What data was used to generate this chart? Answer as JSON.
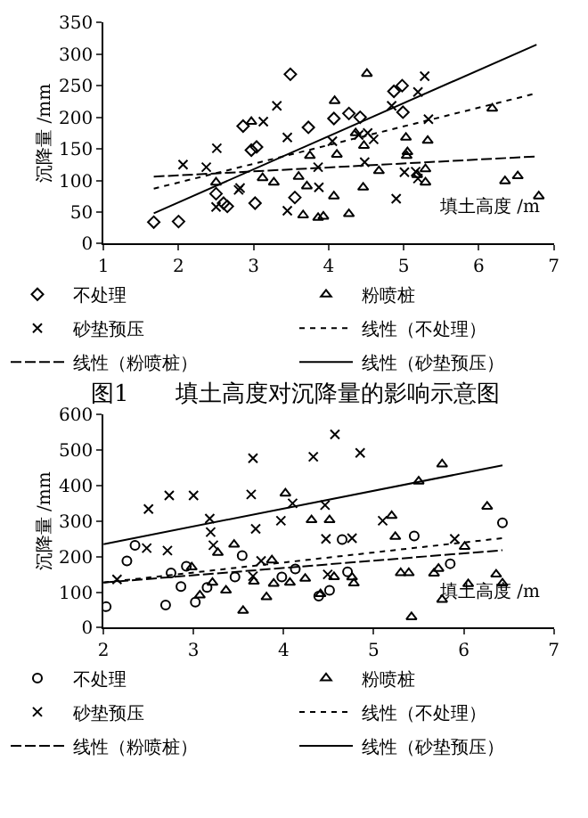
{
  "chart_data": [
    {
      "type": "scatter",
      "xlabel": "填土高度 /m",
      "ylabel": "沉降量 /mm",
      "xlim": [
        1,
        7
      ],
      "ylim": [
        0,
        350
      ],
      "xticks": [
        1,
        2,
        3,
        4,
        5,
        6,
        7
      ],
      "yticks": [
        0,
        50,
        100,
        150,
        200,
        250,
        300,
        350
      ],
      "legend": "bottom",
      "annotations": [
        "图1　　填土高度对沉降量的影响示意图"
      ],
      "series": [
        {
          "name": "不处理",
          "marker": "diamond",
          "color": "#000000",
          "x": [
            1.67,
            2.0,
            2.5,
            2.6,
            2.65,
            2.86,
            2.97,
            3.04,
            3.02,
            3.49,
            3.55,
            3.73,
            4.07,
            4.27,
            4.42,
            4.87,
            4.98,
            4.99
          ],
          "values": [
            34,
            35,
            79,
            64,
            59,
            186,
            148,
            153,
            64,
            268,
            73,
            184,
            198,
            206,
            200,
            241,
            250,
            208
          ]
        },
        {
          "name": "粉喷桩",
          "marker": "triangle",
          "color": "#000000",
          "x": [
            2.5,
            2.97,
            3.12,
            3.27,
            3.6,
            3.66,
            3.71,
            3.75,
            3.86,
            3.93,
            4.07,
            4.08,
            4.11,
            4.27,
            4.36,
            4.46,
            4.47,
            4.51,
            4.67,
            5.03,
            5.05,
            5.04,
            5.18,
            5.29,
            5.29,
            5.32,
            6.18,
            6.35,
            6.52,
            6.8
          ],
          "values": [
            97,
            193,
            104,
            97,
            106,
            45,
            91,
            139,
            41,
            43,
            75,
            226,
            141,
            47,
            175,
            89,
            155,
            269,
            115,
            168,
            145,
            139,
            109,
            118,
            97,
            163,
            214,
            99,
            107,
            75
          ]
        },
        {
          "name": "砂垫预压",
          "marker": "cross",
          "color": "#000000",
          "x": [
            2.06,
            2.37,
            2.51,
            2.5,
            2.8,
            2.82,
            3.13,
            3.31,
            3.45,
            3.45,
            3.86,
            3.87,
            4.05,
            4.4,
            4.52,
            4.48,
            4.6,
            4.84,
            4.9,
            5.01,
            5.19,
            5.28,
            5.33,
            5.16,
            5.19
          ],
          "values": [
            125,
            121,
            151,
            58,
            85,
            88,
            193,
            218,
            168,
            52,
            121,
            89,
            162,
            172,
            175,
            129,
            165,
            218,
            71,
            113,
            240,
            265,
            197,
            114,
            103
          ]
        },
        {
          "name": "线性（不处理）",
          "type": "line",
          "line_style": "dotted",
          "color": "#000000",
          "x": [
            1.67,
            6.77
          ],
          "values": [
            87,
            238
          ]
        },
        {
          "name": "线性（粉喷桩）",
          "type": "line",
          "line_style": "dashed",
          "color": "#000000",
          "x": [
            1.67,
            6.77
          ],
          "values": [
            106,
            138
          ]
        },
        {
          "name": "线性（砂垫预压）",
          "type": "line",
          "line_style": "solid",
          "color": "#000000",
          "x": [
            1.67,
            6.77
          ],
          "values": [
            48,
            315
          ]
        }
      ]
    },
    {
      "type": "scatter",
      "xlabel": "填土高度 /m",
      "ylabel": "沉降量 /mm",
      "xlim": [
        2,
        7
      ],
      "ylim": [
        0,
        600
      ],
      "xticks": [
        2,
        3,
        4,
        5,
        6,
        7
      ],
      "yticks": [
        0,
        100,
        200,
        300,
        400,
        500,
        600
      ],
      "legend": "bottom",
      "series": [
        {
          "name": "不处理",
          "marker": "circle",
          "color": "#000000",
          "x": [
            2.03,
            2.26,
            2.35,
            2.69,
            2.75,
            2.86,
            2.92,
            3.02,
            3.15,
            3.46,
            3.54,
            3.98,
            4.13,
            4.39,
            4.51,
            4.65,
            4.71,
            5.45,
            5.85,
            6.43
          ],
          "values": [
            59,
            188,
            232,
            64,
            154,
            116,
            173,
            72,
            113,
            143,
            203,
            143,
            165,
            89,
            105,
            248,
            157,
            258,
            180,
            295
          ]
        },
        {
          "name": "粉喷桩",
          "marker": "triangle",
          "color": "#000000",
          "x": [
            2.98,
            3.07,
            3.21,
            3.27,
            3.36,
            3.45,
            3.55,
            3.67,
            3.81,
            3.87,
            3.89,
            4.02,
            4.07,
            4.24,
            4.31,
            4.41,
            4.51,
            4.56,
            4.76,
            4.78,
            5.2,
            5.24,
            5.3,
            5.39,
            5.42,
            5.5,
            5.67,
            5.72,
            5.76,
            5.76,
            6.01,
            6.05,
            6.26,
            6.36,
            6.43
          ],
          "values": [
            170,
            91,
            127,
            211,
            105,
            234,
            48,
            130,
            86,
            190,
            124,
            378,
            127,
            138,
            303,
            95,
            303,
            143,
            142,
            125,
            315,
            256,
            154,
            154,
            30,
            412,
            153,
            166,
            460,
            79,
            228,
            123,
            341,
            150,
            125
          ]
        },
        {
          "name": "砂垫预压",
          "marker": "cross",
          "color": "#000000",
          "x": [
            2.15,
            2.48,
            2.5,
            2.71,
            2.73,
            3.0,
            3.18,
            3.19,
            3.22,
            3.64,
            3.66,
            3.66,
            3.69,
            3.75,
            3.97,
            4.1,
            4.33,
            4.46,
            4.47,
            4.49,
            4.57,
            4.76,
            4.85,
            5.1,
            5.9
          ],
          "values": [
            136,
            224,
            334,
            217,
            372,
            372,
            307,
            269,
            232,
            375,
            477,
            145,
            278,
            188,
            301,
            350,
            481,
            345,
            250,
            150,
            544,
            252,
            492,
            301,
            250
          ]
        },
        {
          "name": "线性（不处理）",
          "type": "line",
          "line_style": "dotted",
          "color": "#000000",
          "x": [
            2,
            6.43
          ],
          "values": [
            127,
            252
          ]
        },
        {
          "name": "线性（粉喷桩）",
          "type": "line",
          "line_style": "dashed",
          "color": "#000000",
          "x": [
            2,
            6.43
          ],
          "values": [
            127,
            218
          ]
        },
        {
          "name": "线性（砂垫预压）",
          "type": "line",
          "line_style": "solid",
          "color": "#000000",
          "x": [
            2,
            6.43
          ],
          "values": [
            235,
            457
          ]
        }
      ]
    }
  ]
}
